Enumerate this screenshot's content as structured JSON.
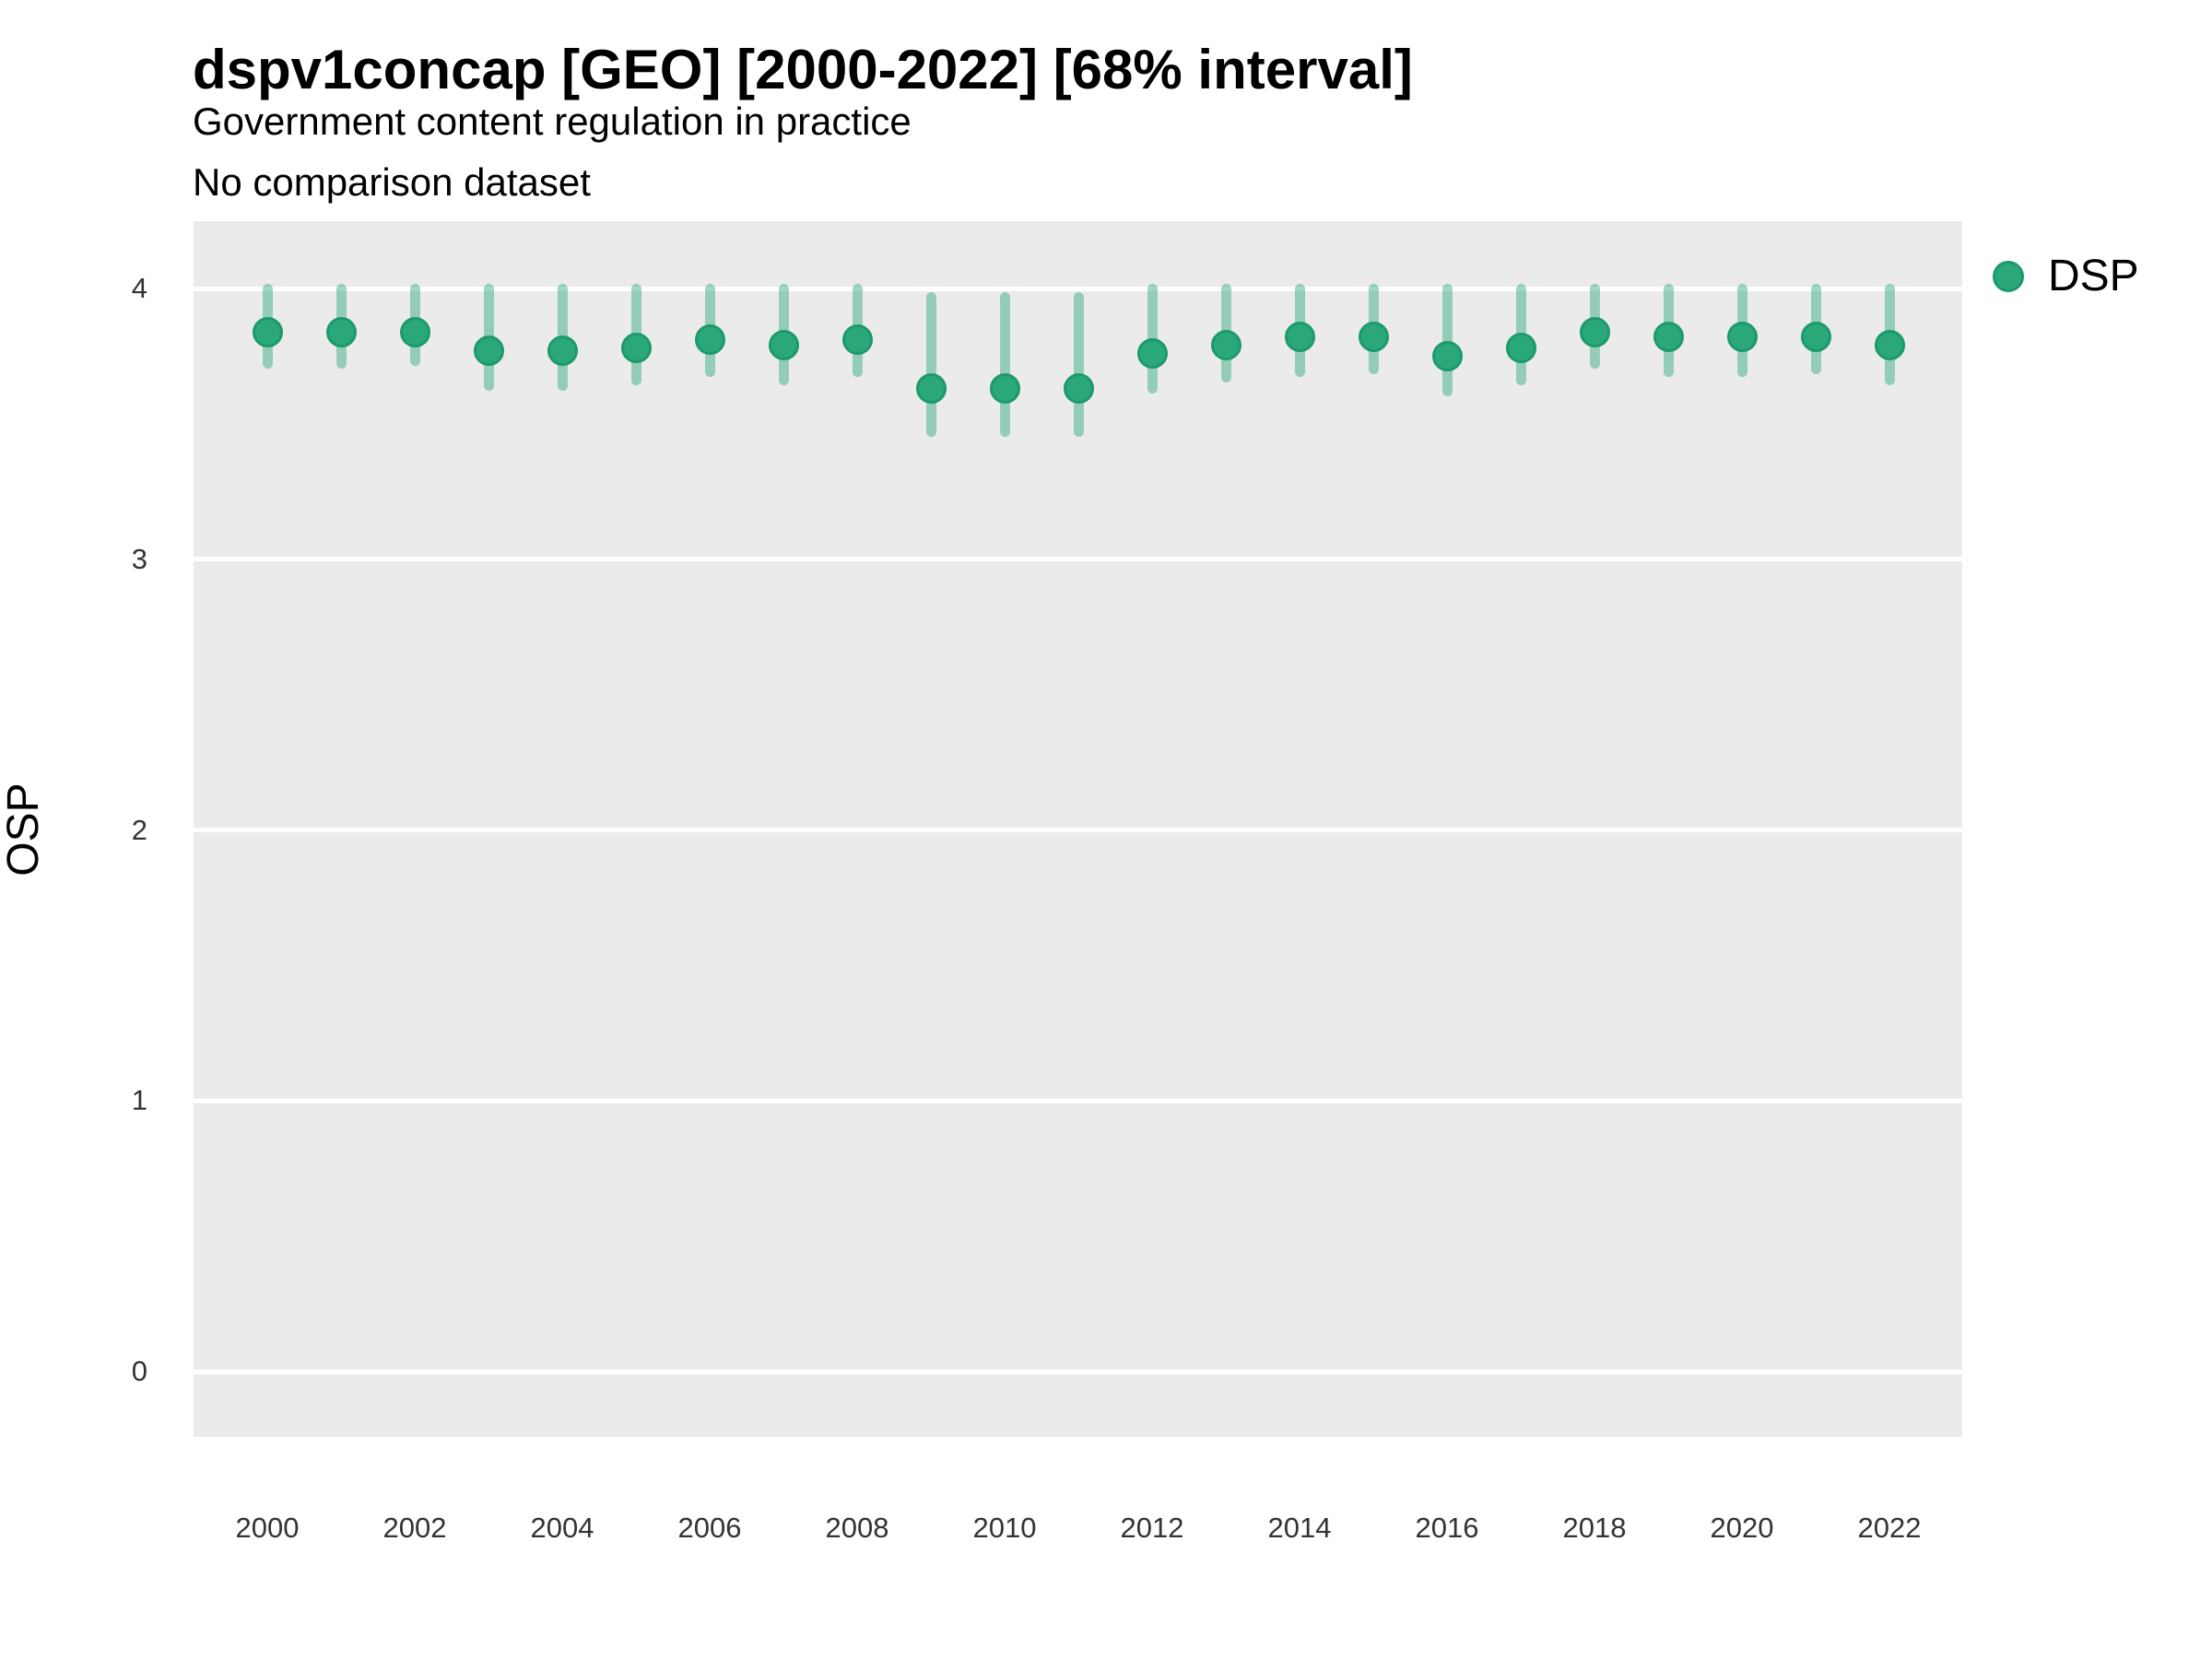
{
  "header": {
    "title": "dspv1concap [GEO] [2000-2022] [68% interval]",
    "subtitle_line1": "Government content regulation in practice",
    "subtitle_line2": "No comparison dataset"
  },
  "legend": {
    "label": "DSP",
    "position": "right"
  },
  "colors": {
    "marker_fill": "#2aa878",
    "marker_stroke": "#1c9a6b",
    "interval_bar": "rgba(42,168,120,0.45)",
    "panel_background": "#ebebeb",
    "gridline": "#ffffff",
    "tick_text": "#333333",
    "title_text": "#000000"
  },
  "chart_data": {
    "type": "scatter",
    "title": "dspv1concap [GEO] [2000-2022] [68% interval]",
    "subtitle": [
      "Government content regulation in practice",
      "No comparison dataset"
    ],
    "xlabel": "",
    "ylabel": "OSP",
    "interval_label": "68% interval",
    "ylim": [
      0,
      4
    ],
    "y_ticks": [
      0,
      1,
      2,
      3,
      4
    ],
    "x_tick_years": [
      2000,
      2002,
      2004,
      2006,
      2008,
      2010,
      2012,
      2014,
      2016,
      2018,
      2020,
      2022
    ],
    "grid": "major-horizontal-white-on-gray",
    "legend_position": "right",
    "series": [
      {
        "name": "DSP",
        "x": [
          2000,
          2001,
          2002,
          2003,
          2004,
          2005,
          2006,
          2007,
          2008,
          2009,
          2010,
          2011,
          2012,
          2013,
          2014,
          2015,
          2016,
          2017,
          2018,
          2019,
          2020,
          2021,
          2022
        ],
        "y": [
          3.84,
          3.84,
          3.84,
          3.77,
          3.77,
          3.78,
          3.81,
          3.79,
          3.81,
          3.63,
          3.63,
          3.63,
          3.76,
          3.79,
          3.82,
          3.82,
          3.75,
          3.78,
          3.84,
          3.82,
          3.82,
          3.82,
          3.79
        ],
        "ci_low": [
          3.72,
          3.72,
          3.73,
          3.64,
          3.64,
          3.66,
          3.69,
          3.66,
          3.69,
          3.47,
          3.47,
          3.47,
          3.63,
          3.67,
          3.69,
          3.7,
          3.62,
          3.66,
          3.72,
          3.69,
          3.69,
          3.7,
          3.66
        ],
        "ci_high": [
          4.0,
          4.0,
          4.0,
          4.0,
          4.0,
          4.0,
          4.0,
          4.0,
          4.0,
          3.97,
          3.97,
          3.97,
          4.0,
          4.0,
          4.0,
          4.0,
          4.0,
          4.0,
          4.0,
          4.0,
          4.0,
          4.0,
          4.0
        ]
      }
    ]
  }
}
